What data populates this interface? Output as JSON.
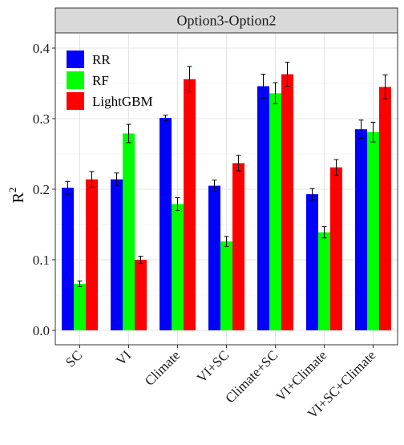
{
  "chart_data": {
    "type": "bar",
    "title": "Option3-Option2",
    "ylabel": "R",
    "ylabel_superscript": "2",
    "xlabel": "",
    "ylim": [
      0,
      0.43
    ],
    "yticks": [
      "0.0",
      "0.1",
      "0.2",
      "0.3",
      "0.4"
    ],
    "grid": true,
    "legend_position": "top-left",
    "categories": [
      "SC",
      "VI",
      "Climate",
      "VI+SC",
      "Climate+SC",
      "VI+Climate",
      "VI+SC+Climate"
    ],
    "series": [
      {
        "name": "RR",
        "color": "#0000ff",
        "values": [
          0.202,
          0.214,
          0.301,
          0.205,
          0.346,
          0.193,
          0.285
        ],
        "errors": [
          0.009,
          0.009,
          0.004,
          0.008,
          0.017,
          0.008,
          0.013
        ]
      },
      {
        "name": "RF",
        "color": "#00ff00",
        "values": [
          0.066,
          0.279,
          0.179,
          0.126,
          0.336,
          0.139,
          0.281
        ],
        "errors": [
          0.004,
          0.013,
          0.009,
          0.007,
          0.015,
          0.008,
          0.014
        ]
      },
      {
        "name": "LightGBM",
        "color": "#ff0000",
        "values": [
          0.214,
          0.1,
          0.356,
          0.237,
          0.363,
          0.231,
          0.345
        ],
        "errors": [
          0.011,
          0.005,
          0.018,
          0.011,
          0.017,
          0.011,
          0.017
        ]
      }
    ]
  }
}
